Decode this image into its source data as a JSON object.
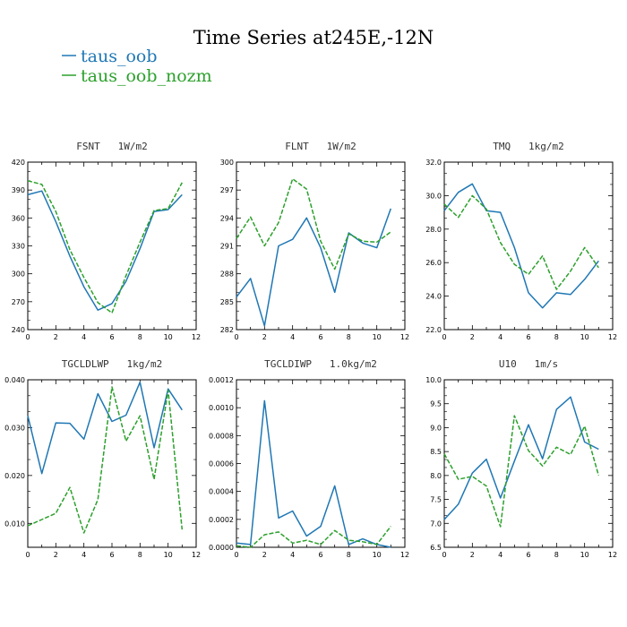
{
  "figure": {
    "title": "Time Series at245E,-12N"
  },
  "legend": [
    {
      "name": "taus_oob",
      "color": "#1f77b4"
    },
    {
      "name": "taus_oob_nozm",
      "color": "#2ca02c"
    }
  ],
  "chart_data": [
    {
      "type": "line",
      "title": "FSNT   1W/m2",
      "xlim": [
        0,
        12
      ],
      "ylim": [
        240,
        420
      ],
      "xticks": [
        0,
        2,
        4,
        6,
        8,
        10,
        12
      ],
      "yticks": [
        240,
        270,
        300,
        330,
        360,
        390,
        420
      ],
      "ytick_labels": [
        "240",
        "270",
        "300",
        "330",
        "360",
        "390",
        "420"
      ],
      "x": [
        0,
        1,
        2,
        3,
        4,
        5,
        6,
        7,
        8,
        9,
        10,
        11
      ],
      "series": [
        {
          "name": "taus_oob",
          "values": [
            385,
            389,
            356,
            319,
            286,
            261,
            268,
            292,
            327,
            367,
            369,
            385
          ]
        },
        {
          "name": "taus_oob_nozm",
          "values": [
            400,
            396,
            367,
            326,
            296,
            269,
            258,
            298,
            334,
            368,
            370,
            398
          ]
        }
      ]
    },
    {
      "type": "line",
      "title": "FLNT   1W/m2",
      "xlim": [
        0,
        12
      ],
      "ylim": [
        282,
        300
      ],
      "xticks": [
        0,
        2,
        4,
        6,
        8,
        10,
        12
      ],
      "yticks": [
        282,
        285,
        288,
        291,
        294,
        297,
        300
      ],
      "ytick_labels": [
        "282",
        "285",
        "288",
        "291",
        "294",
        "297",
        "300"
      ],
      "x": [
        0,
        1,
        2,
        3,
        4,
        5,
        6,
        7,
        8,
        9,
        10,
        11
      ],
      "series": [
        {
          "name": "taus_oob",
          "values": [
            285.5,
            287.5,
            282.4,
            291.0,
            291.7,
            294.0,
            290.8,
            286.0,
            292.4,
            291.3,
            290.8,
            295.0
          ]
        },
        {
          "name": "taus_oob_nozm",
          "values": [
            291.8,
            294.1,
            291.0,
            293.5,
            298.2,
            297.1,
            291.5,
            288.5,
            292.3,
            291.5,
            291.4,
            292.5
          ]
        }
      ]
    },
    {
      "type": "line",
      "title": "TMQ   1kg/m2",
      "xlim": [
        0,
        12
      ],
      "ylim": [
        22.0,
        32.0
      ],
      "xticks": [
        0,
        2,
        4,
        6,
        8,
        10,
        12
      ],
      "yticks": [
        22,
        24,
        26,
        28,
        30,
        32
      ],
      "ytick_labels": [
        "22.0",
        "24.0",
        "26.0",
        "28.0",
        "30.0",
        "32.0"
      ],
      "x": [
        0,
        1,
        2,
        3,
        4,
        5,
        6,
        7,
        8,
        9,
        10,
        11
      ],
      "series": [
        {
          "name": "taus_oob",
          "values": [
            29.1,
            30.2,
            30.7,
            29.1,
            29.0,
            26.9,
            24.2,
            23.3,
            24.2,
            24.1,
            25.0,
            26.1
          ]
        },
        {
          "name": "taus_oob_nozm",
          "values": [
            29.5,
            28.7,
            30.0,
            29.2,
            27.2,
            25.9,
            25.3,
            26.4,
            24.4,
            25.5,
            26.9,
            25.7
          ]
        }
      ]
    },
    {
      "type": "line",
      "title": "TGCLDLWP   1kg/m2",
      "xlim": [
        0,
        12
      ],
      "ylim": [
        0.005,
        0.04
      ],
      "xticks": [
        0,
        2,
        4,
        6,
        8,
        10,
        12
      ],
      "yticks": [
        0.01,
        0.02,
        0.03,
        0.04
      ],
      "ytick_labels": [
        "0.010",
        "0.020",
        "0.030",
        "0.040"
      ],
      "x": [
        0,
        1,
        2,
        3,
        4,
        5,
        6,
        7,
        8,
        9,
        10,
        11
      ],
      "series": [
        {
          "name": "taus_oob",
          "values": [
            0.0325,
            0.0204,
            0.031,
            0.0309,
            0.0276,
            0.0371,
            0.0313,
            0.0326,
            0.0395,
            0.0258,
            0.0381,
            0.0337
          ]
        },
        {
          "name": "taus_oob_nozm",
          "values": [
            0.0095,
            0.0108,
            0.0121,
            0.0175,
            0.008,
            0.015,
            0.0385,
            0.0272,
            0.0325,
            0.0192,
            0.0378,
            0.0087
          ]
        }
      ]
    },
    {
      "type": "line",
      "title": "TGCLDIWP   1.0kg/m2",
      "xlim": [
        0,
        12
      ],
      "ylim": [
        0.0,
        0.0012
      ],
      "xticks": [
        0,
        2,
        4,
        6,
        8,
        10,
        12
      ],
      "yticks": [
        0.0,
        0.0002,
        0.0004,
        0.0006,
        0.0008,
        0.001,
        0.0012
      ],
      "ytick_labels": [
        "0.0000",
        "0.0002",
        "0.0004",
        "0.0006",
        "0.0008",
        "0.0010",
        "0.0012"
      ],
      "x": [
        0,
        1,
        2,
        3,
        4,
        5,
        6,
        7,
        8,
        9,
        10,
        11
      ],
      "series": [
        {
          "name": "taus_oob",
          "values": [
            3e-05,
            2e-05,
            0.00105,
            0.00021,
            0.00026,
            8e-05,
            0.00015,
            0.00044,
            2e-05,
            6e-05,
            2e-05,
            0.0
          ]
        },
        {
          "name": "taus_oob_nozm",
          "values": [
            1e-05,
            0.0,
            9e-05,
            0.00011,
            3e-05,
            5e-05,
            2e-05,
            0.00012,
            5e-05,
            4e-05,
            2e-05,
            0.00015
          ]
        }
      ]
    },
    {
      "type": "line",
      "title": "U10   1m/s",
      "xlim": [
        0,
        12
      ],
      "ylim": [
        6.5,
        10.0
      ],
      "xticks": [
        0,
        2,
        4,
        6,
        8,
        10,
        12
      ],
      "yticks": [
        6.5,
        7.0,
        7.5,
        8.0,
        8.5,
        9.0,
        9.5,
        10.0
      ],
      "ytick_labels": [
        "6.5",
        "7.0",
        "7.5",
        "8.0",
        "8.5",
        "9.0",
        "9.5",
        "10.0"
      ],
      "x": [
        0,
        1,
        2,
        3,
        4,
        5,
        6,
        7,
        8,
        9,
        10,
        11
      ],
      "series": [
        {
          "name": "taus_oob",
          "values": [
            7.08,
            7.4,
            8.05,
            8.34,
            7.53,
            8.3,
            9.06,
            8.35,
            9.38,
            9.64,
            8.7,
            8.55
          ]
        },
        {
          "name": "taus_oob_nozm",
          "values": [
            8.45,
            7.92,
            7.98,
            7.78,
            6.93,
            9.25,
            8.52,
            8.2,
            8.59,
            8.44,
            9.03,
            8.0
          ]
        }
      ]
    }
  ]
}
